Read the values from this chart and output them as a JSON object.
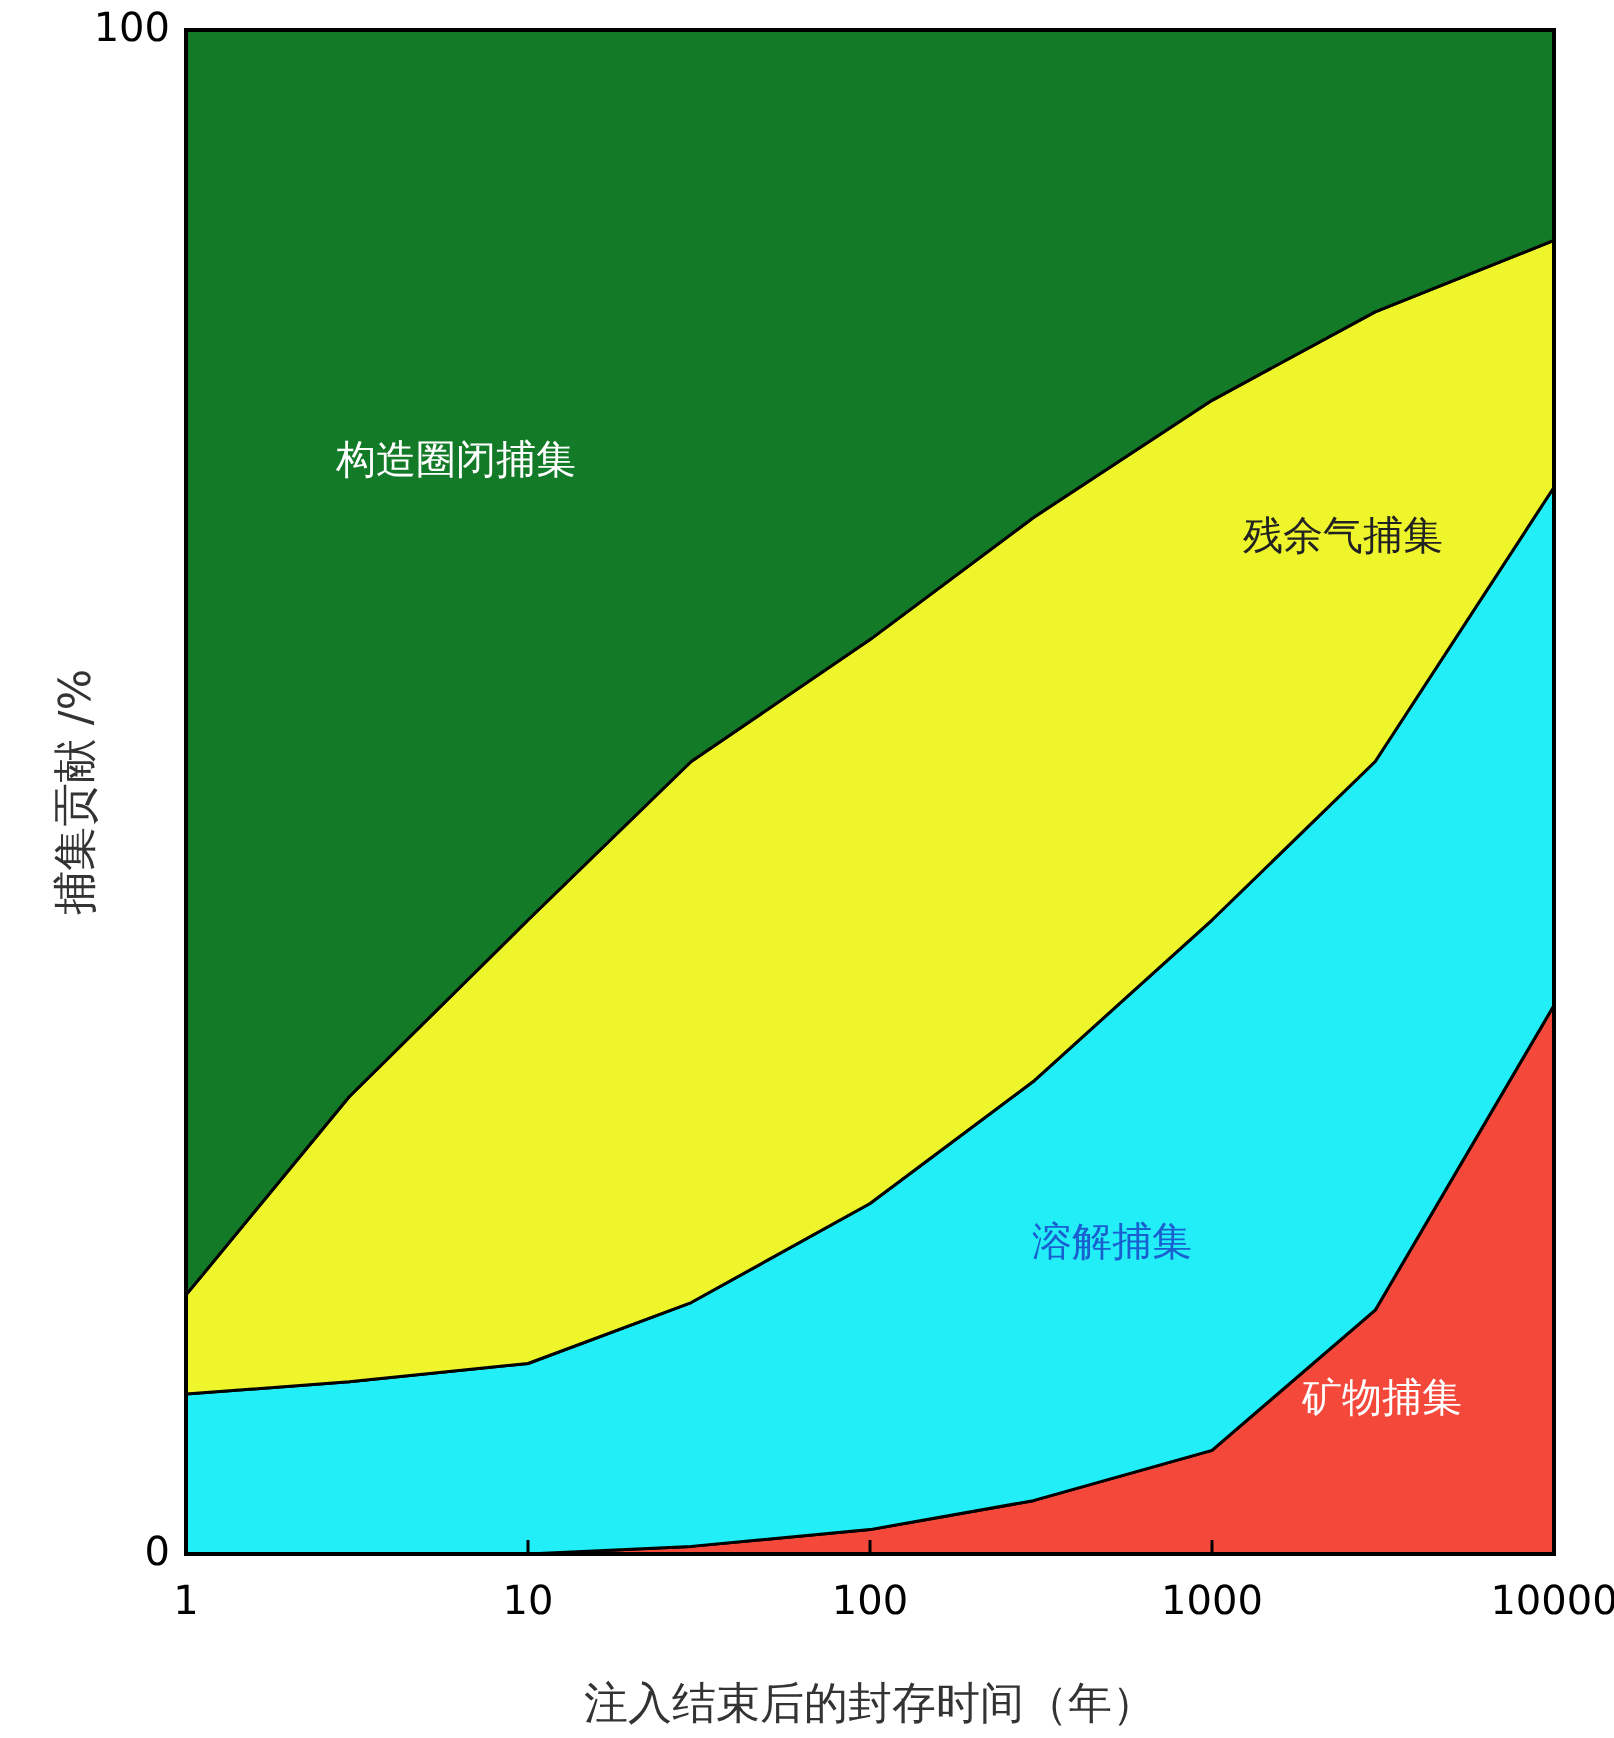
{
  "chart_data": {
    "type": "area",
    "stacked": true,
    "log": "x",
    "xlabel": "注入结束后的封存时间（年）",
    "ylabel": "捕集贡献 /%",
    "x": [
      1,
      3,
      10,
      30,
      100,
      300,
      1000,
      3000,
      10000
    ],
    "xlim": [
      1,
      10000
    ],
    "xticks": [
      1,
      10,
      100,
      1000,
      10000
    ],
    "ylim": [
      0,
      100
    ],
    "yticks": [
      0,
      100
    ],
    "series": [
      {
        "name": "矿物捕集",
        "color": "#f4483a",
        "values": [
          0,
          0,
          0,
          0.5,
          1.6,
          3.5,
          6.8,
          16,
          36
        ]
      },
      {
        "name": "溶解捕集",
        "color": "#22eef8",
        "values": [
          10.5,
          11.3,
          12.5,
          16,
          21.4,
          27.5,
          34.8,
          36,
          34
        ]
      },
      {
        "name": "残余气捕集",
        "color": "#eef52a",
        "values": [
          6.5,
          18.7,
          29.1,
          35.5,
          37,
          37,
          34.1,
          29.5,
          16.2
        ]
      },
      {
        "name": "构造圈闭捕集",
        "color": "#137a28",
        "values": [
          83,
          70,
          58.4,
          48,
          40,
          32,
          24.3,
          18.5,
          13.8
        ]
      }
    ]
  }
}
